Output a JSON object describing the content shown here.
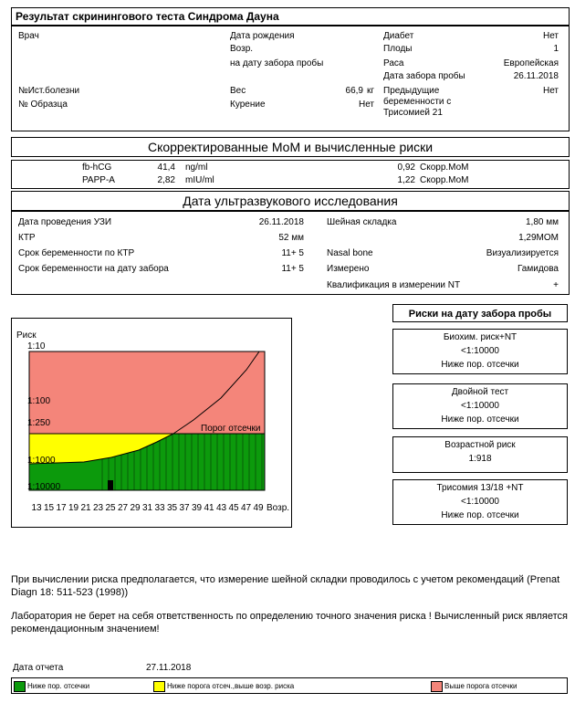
{
  "header": {
    "title": "Результат скринингового теста Синдрома Дауна"
  },
  "patient": {
    "doctor_label": "Врач",
    "birth_date_label": "Дата рождения",
    "age_label": "Возр.",
    "age_at_label": "на дату забора пробы",
    "diabetes_label": "Диабет",
    "diabetes": "Нет",
    "fetuses_label": "Плоды",
    "fetuses": "1",
    "race_label": "Раса",
    "race": "Европейская",
    "sample_date_label": "Дата забора пробы",
    "sample_date": "26.11.2018",
    "history_label": "№Ист.болезни",
    "sample_no_label": "№ Образца",
    "weight_label": "Вес",
    "weight": "66,9",
    "weight_unit": "кг",
    "smoking_label": "Курение",
    "smoking": "Нет",
    "prev_label": "Предыдущие беременности с Трисомией 21",
    "prev": "Нет"
  },
  "mom": {
    "title": "Скорректированные МоМ и вычисленные риски",
    "rows": [
      [
        "fb-hCG",
        "41,4",
        "ng/ml",
        "0,92",
        "Скорр.МоМ"
      ],
      [
        "PAPP-A",
        "2,82",
        "mIU/ml",
        "1,22",
        "Скорр.МоМ"
      ]
    ]
  },
  "ultrasound": {
    "title": "Дата ультразвукового исследования",
    "left": [
      [
        "Дата проведения УЗИ",
        "26.11.2018"
      ],
      [
        "КТР",
        "52 мм"
      ],
      [
        "Срок беременности по КТР",
        "11+ 5"
      ],
      [
        "Срок беременности на дату забора",
        "11+ 5"
      ]
    ],
    "nt_label": "Шейная складка",
    "nt_value": "1,80 мм",
    "nt_mom": "1,29MOM",
    "nasal_label": "Nasal bone",
    "nasal": "Визуализируется",
    "measured_label": "Измерено",
    "measured": "Гамидова",
    "qualification_label": "Квалификация в измерении NT",
    "qualification": "+"
  },
  "risk_chart": {
    "y_label": "Риск",
    "y_ticks": [
      "1:10",
      "1:100",
      "1:250",
      "1:1000",
      "1:10000"
    ],
    "x_ticks": [
      13,
      15,
      17,
      19,
      21,
      23,
      25,
      27,
      29,
      31,
      33,
      35,
      37,
      39,
      41,
      43,
      45,
      47,
      49
    ],
    "x_label": "Возр.",
    "threshold_label": "Порог отсечки"
  },
  "risks": {
    "title": "Риски на дату забора пробы",
    "items": [
      {
        "name": "Биохим. риск+NT",
        "value": "<1:10000",
        "status": "Ниже пор. отсечки"
      },
      {
        "name": "Двойной тест",
        "value": "<1:10000",
        "status": "Ниже пор. отсечки"
      },
      {
        "name": "Возрастной риск",
        "value": "1:918"
      },
      {
        "name": "Трисомия 13/18 +NT",
        "value": "<1:10000",
        "status": "Ниже пор. отсечки"
      }
    ]
  },
  "notes": [
    "При вычислении риска предполагается, что измерение шейной складки проводилось с учетом рекомендаций (Prenat Diagn 18: 511-523 (1998))",
    "Лаборатория не берет на себя ответственность по определению точного значения риска ! Вычисленный риск является рекомендационным значением!"
  ],
  "report": {
    "date_label": "Дата отчета",
    "date": "27.11.2018"
  },
  "legend": [
    "Ниже пор. отсечки",
    "Ниже порога отсеч.,выше возр. риска",
    "Выше порога отсечки"
  ]
}
